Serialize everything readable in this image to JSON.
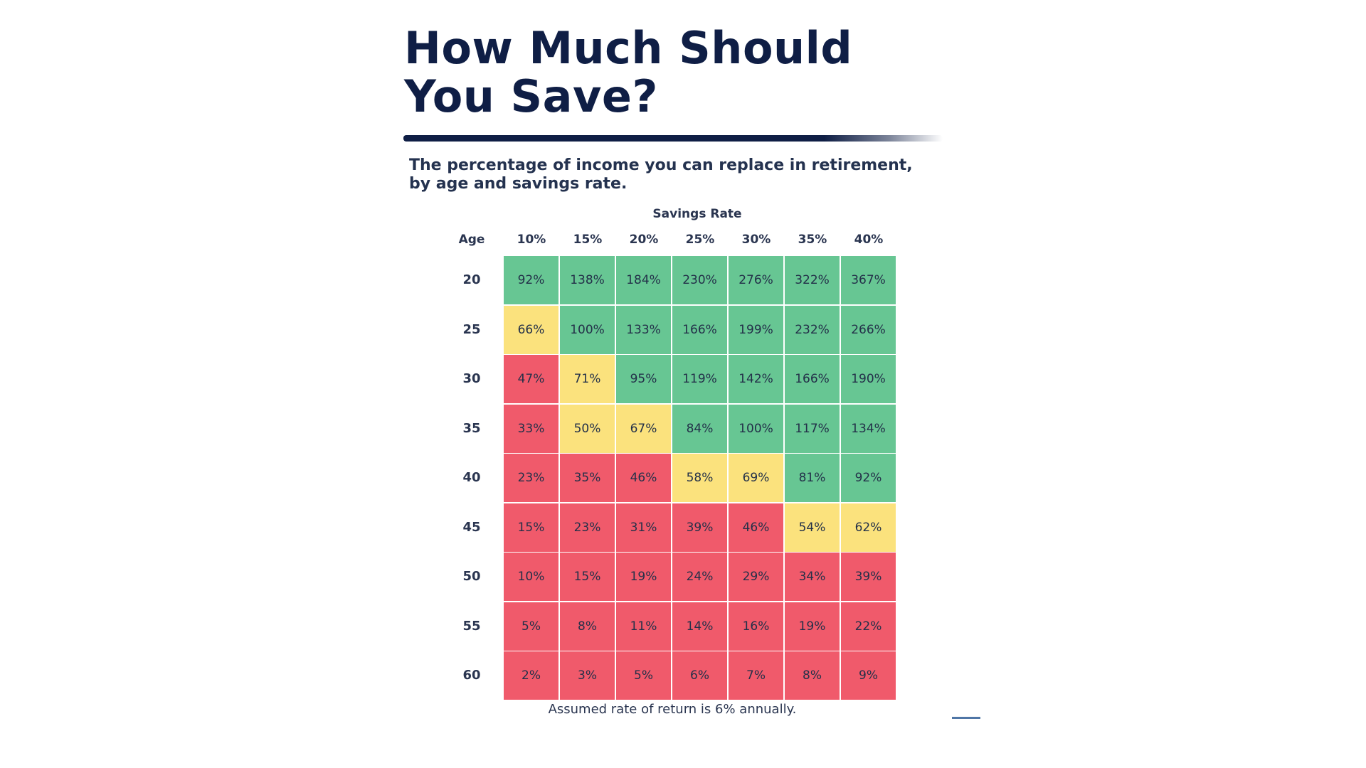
{
  "colors": {
    "title": "#0f1e45",
    "green": "#67c693",
    "yellow": "#fbe27d",
    "red": "#f05a6b",
    "cell_text": "#233049"
  },
  "header": {
    "title": "How Much Should\nYou Save?",
    "subtitle": "The percentage of income you can replace in retirement, by age and savings rate."
  },
  "footnote": "Assumed rate of return is 6% annually.",
  "chart_data": {
    "type": "heatmap",
    "title": "How Much Should You Save?",
    "subtitle": "The percentage of income you can replace in retirement, by age and savings rate.",
    "x_axis_title": "Savings Rate",
    "y_axis_title": "Age",
    "columns": [
      "10%",
      "15%",
      "20%",
      "25%",
      "30%",
      "35%",
      "40%"
    ],
    "rows": [
      "20",
      "25",
      "30",
      "35",
      "40",
      "45",
      "50",
      "55",
      "60"
    ],
    "values": [
      [
        92,
        138,
        184,
        230,
        276,
        322,
        367
      ],
      [
        66,
        100,
        133,
        166,
        199,
        232,
        266
      ],
      [
        47,
        71,
        95,
        119,
        142,
        166,
        190
      ],
      [
        33,
        50,
        67,
        84,
        100,
        117,
        134
      ],
      [
        23,
        35,
        46,
        58,
        69,
        81,
        92
      ],
      [
        15,
        23,
        31,
        39,
        46,
        54,
        62
      ],
      [
        10,
        15,
        19,
        24,
        29,
        34,
        39
      ],
      [
        5,
        8,
        11,
        14,
        16,
        19,
        22
      ],
      [
        2,
        3,
        5,
        6,
        7,
        8,
        9
      ]
    ],
    "categories": [
      [
        "green",
        "green",
        "green",
        "green",
        "green",
        "green",
        "green"
      ],
      [
        "yellow",
        "green",
        "green",
        "green",
        "green",
        "green",
        "green"
      ],
      [
        "red",
        "yellow",
        "green",
        "green",
        "green",
        "green",
        "green"
      ],
      [
        "red",
        "yellow",
        "yellow",
        "green",
        "green",
        "green",
        "green"
      ],
      [
        "red",
        "red",
        "red",
        "yellow",
        "yellow",
        "green",
        "green"
      ],
      [
        "red",
        "red",
        "red",
        "red",
        "red",
        "yellow",
        "yellow"
      ],
      [
        "red",
        "red",
        "red",
        "red",
        "red",
        "red",
        "red"
      ],
      [
        "red",
        "red",
        "red",
        "red",
        "red",
        "red",
        "red"
      ],
      [
        "red",
        "red",
        "red",
        "red",
        "red",
        "red",
        "red"
      ]
    ],
    "value_suffix": "%",
    "note": "Assumed rate of return is 6% annually."
  }
}
